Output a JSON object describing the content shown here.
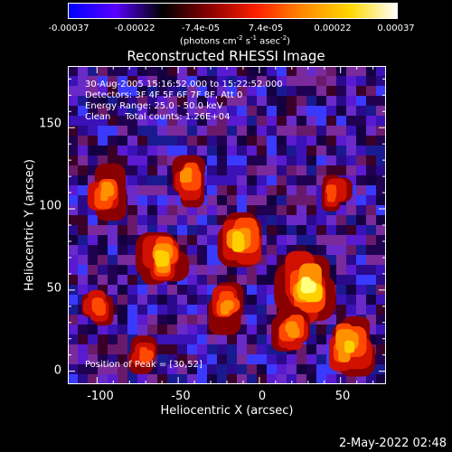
{
  "colorbar": {
    "ticks": [
      "-0.00037",
      "-0.00022",
      "-7.4e-05",
      "7.4e-05",
      "0.00022",
      "0.00037"
    ],
    "unit_main": "(photons cm",
    "unit_sup1": "-2",
    "unit_mid": " s",
    "unit_sup2": "-1",
    "unit_mid2": " asec",
    "unit_sup3": "-2",
    "unit_end": ")",
    "colors": [
      "#0000ff",
      "#5a00ff",
      "#000000",
      "#8a0000",
      "#ff2000",
      "#ff8a00",
      "#ffd800",
      "#ffffff"
    ]
  },
  "chart_data": {
    "type": "heatmap",
    "title": "Reconstructed RHESSI Image",
    "xlabel": "Heliocentric X (arcsec)",
    "ylabel": "Heliocentric Y (arcsec)",
    "xlim": [
      -118,
      78
    ],
    "ylim": [
      -8,
      188
    ],
    "x_ticks": [
      "-100",
      "-50",
      "0",
      "50"
    ],
    "y_ticks": [
      "0",
      "50",
      "100",
      "150"
    ],
    "annotations": [
      "30-Aug-2005 15:16:52.000 to 15:22:52.000",
      "Detectors: 3F 4F 5F 6F 7F 8F, Att 0",
      "Energy Range: 25.0 - 50.0 keV",
      "Clean     Total counts: 1.26E+04"
    ],
    "peak_label": "Position of Peak = [30,52]",
    "peak": [
      30,
      52
    ],
    "value_range": [
      -0.00037,
      0.00037
    ],
    "bright_sources": [
      {
        "x": 30,
        "y": 52,
        "level": 1.0
      },
      {
        "x": -12,
        "y": 80,
        "level": 0.85
      },
      {
        "x": -60,
        "y": 70,
        "level": 0.8
      },
      {
        "x": 55,
        "y": 15,
        "level": 0.75
      },
      {
        "x": -45,
        "y": 120,
        "level": 0.7
      },
      {
        "x": 20,
        "y": 25,
        "level": 0.72
      },
      {
        "x": -95,
        "y": 110,
        "level": 0.65
      },
      {
        "x": -100,
        "y": 40,
        "level": 0.5
      },
      {
        "x": -20,
        "y": 40,
        "level": 0.6
      },
      {
        "x": 45,
        "y": 110,
        "level": 0.55
      },
      {
        "x": -70,
        "y": 10,
        "level": 0.45
      }
    ]
  },
  "timestamp": "2-May-2022 02:48"
}
